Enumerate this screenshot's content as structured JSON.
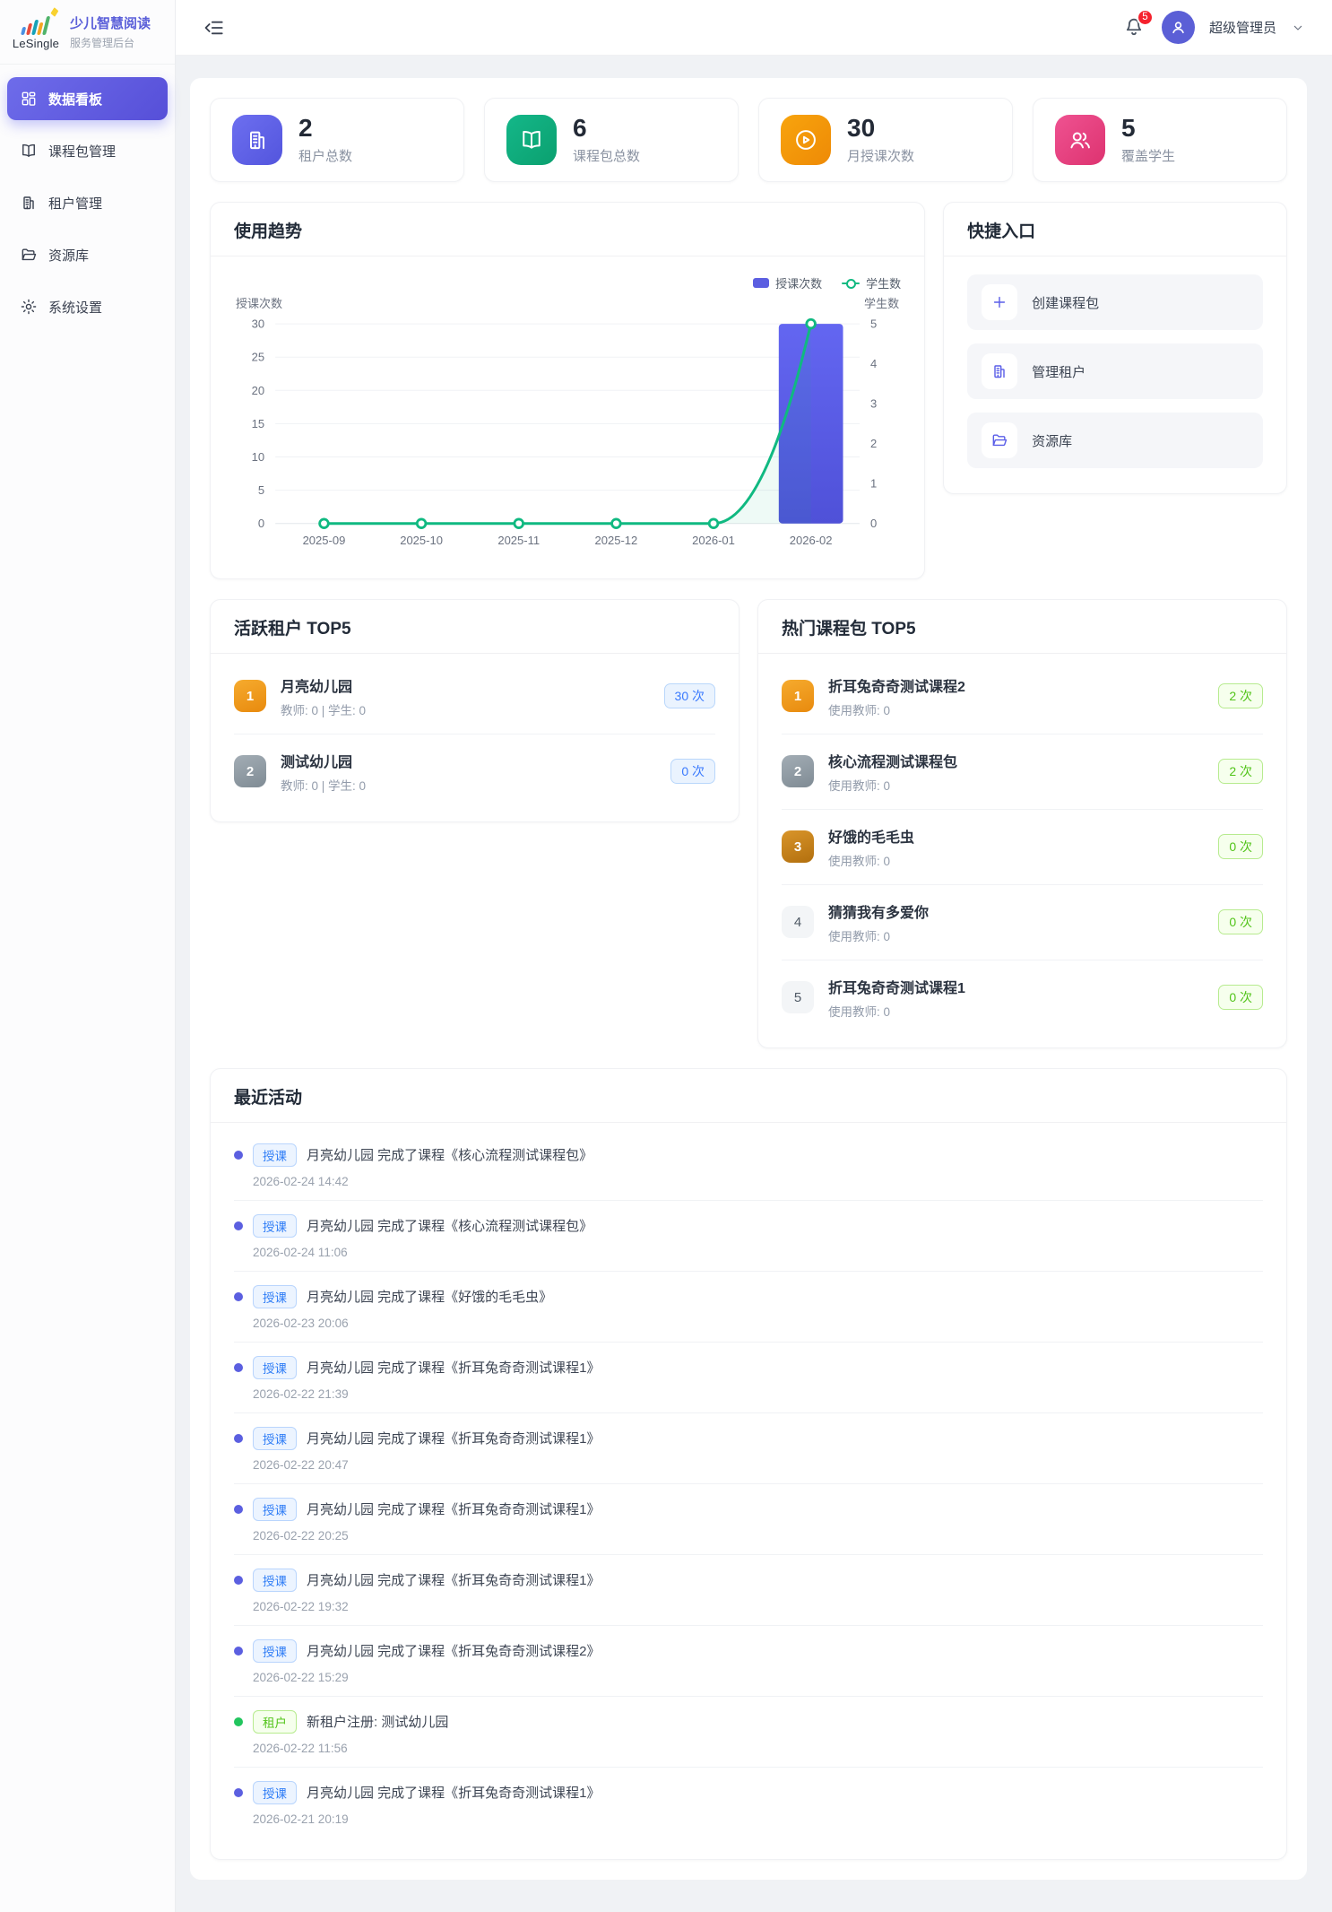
{
  "app": {
    "logo_text": "LeSingle",
    "title": "少儿智慧阅读",
    "subtitle": "服务管理后台"
  },
  "sidebar": {
    "items": [
      {
        "label": "数据看板",
        "icon": "dashboard-icon",
        "active": true
      },
      {
        "label": "课程包管理",
        "icon": "book-icon",
        "active": false
      },
      {
        "label": "租户管理",
        "icon": "building-icon",
        "active": false
      },
      {
        "label": "资源库",
        "icon": "folder-icon",
        "active": false
      },
      {
        "label": "系统设置",
        "icon": "gear-icon",
        "active": false
      }
    ]
  },
  "header": {
    "notification_count": "5",
    "user_name": "超级管理员"
  },
  "stats": [
    {
      "value": "2",
      "label": "租户总数",
      "icon": "building-icon",
      "color": "#5b5bd6"
    },
    {
      "value": "6",
      "label": "课程包总数",
      "icon": "book-icon",
      "color": "#10a97e"
    },
    {
      "value": "30",
      "label": "月授课次数",
      "icon": "play-circle-icon",
      "color": "#f08c00"
    },
    {
      "value": "5",
      "label": "覆盖学生",
      "icon": "users-icon",
      "color": "#e8467c"
    }
  ],
  "trend": {
    "title": "使用趋势"
  },
  "chart_data": {
    "type": "bar+line",
    "categories": [
      "2025-09",
      "2025-10",
      "2025-11",
      "2025-12",
      "2026-01",
      "2026-02"
    ],
    "series": [
      {
        "name": "授课次数",
        "type": "bar",
        "axis": "left",
        "values": [
          0,
          0,
          0,
          0,
          0,
          30
        ],
        "color": "#5b5ce2"
      },
      {
        "name": "学生数",
        "type": "line",
        "axis": "right",
        "values": [
          0,
          0,
          0,
          0,
          0,
          5
        ],
        "color": "#10b981"
      }
    ],
    "left_axis": {
      "label": "授课次数",
      "ticks": [
        0,
        5,
        10,
        15,
        20,
        25,
        30
      ],
      "max": 30
    },
    "right_axis": {
      "label": "学生数",
      "ticks": [
        0,
        1,
        2,
        3,
        4,
        5
      ],
      "max": 5
    },
    "legend_position": "top-right",
    "grid": true
  },
  "quick_entry": {
    "title": "快捷入口",
    "items": [
      {
        "label": "创建课程包",
        "icon": "plus-icon"
      },
      {
        "label": "管理租户",
        "icon": "building-icon"
      },
      {
        "label": "资源库",
        "icon": "folder-icon"
      }
    ]
  },
  "active_tenants": {
    "title": "活跃租户 TOP5",
    "items": [
      {
        "rank": "1",
        "name": "月亮幼儿园",
        "meta": "教师: 0 | 学生: 0",
        "count": "30 次"
      },
      {
        "rank": "2",
        "name": "测试幼儿园",
        "meta": "教师: 0 | 学生: 0",
        "count": "0 次"
      }
    ]
  },
  "hot_packages": {
    "title": "热门课程包 TOP5",
    "items": [
      {
        "rank": "1",
        "name": "折耳兔奇奇测试课程2",
        "meta": "使用教师: 0",
        "count": "2 次"
      },
      {
        "rank": "2",
        "name": "核心流程测试课程包",
        "meta": "使用教师: 0",
        "count": "2 次"
      },
      {
        "rank": "3",
        "name": "好饿的毛毛虫",
        "meta": "使用教师: 0",
        "count": "0 次"
      },
      {
        "rank": "4",
        "name": "猜猜我有多爱你",
        "meta": "使用教师: 0",
        "count": "0 次"
      },
      {
        "rank": "5",
        "name": "折耳兔奇奇测试课程1",
        "meta": "使用教师: 0",
        "count": "0 次"
      }
    ]
  },
  "recent_activity": {
    "title": "最近活动",
    "items": [
      {
        "badge": "授课",
        "type": "teach",
        "text": "月亮幼儿园 完成了课程《核心流程测试课程包》",
        "time": "2026-02-24 14:42"
      },
      {
        "badge": "授课",
        "type": "teach",
        "text": "月亮幼儿园 完成了课程《核心流程测试课程包》",
        "time": "2026-02-24 11:06"
      },
      {
        "badge": "授课",
        "type": "teach",
        "text": "月亮幼儿园 完成了课程《好饿的毛毛虫》",
        "time": "2026-02-23 20:06"
      },
      {
        "badge": "授课",
        "type": "teach",
        "text": "月亮幼儿园 完成了课程《折耳兔奇奇测试课程1》",
        "time": "2026-02-22 21:39"
      },
      {
        "badge": "授课",
        "type": "teach",
        "text": "月亮幼儿园 完成了课程《折耳兔奇奇测试课程1》",
        "time": "2026-02-22 20:47"
      },
      {
        "badge": "授课",
        "type": "teach",
        "text": "月亮幼儿园 完成了课程《折耳兔奇奇测试课程1》",
        "time": "2026-02-22 20:25"
      },
      {
        "badge": "授课",
        "type": "teach",
        "text": "月亮幼儿园 完成了课程《折耳兔奇奇测试课程1》",
        "time": "2026-02-22 19:32"
      },
      {
        "badge": "授课",
        "type": "teach",
        "text": "月亮幼儿园 完成了课程《折耳兔奇奇测试课程2》",
        "time": "2026-02-22 15:29"
      },
      {
        "badge": "租户",
        "type": "tenant",
        "text": "新租户注册: 测试幼儿园",
        "time": "2026-02-22 11:56"
      },
      {
        "badge": "授课",
        "type": "teach",
        "text": "月亮幼儿园 完成了课程《折耳兔奇奇测试课程1》",
        "time": "2026-02-21 20:19"
      }
    ]
  }
}
